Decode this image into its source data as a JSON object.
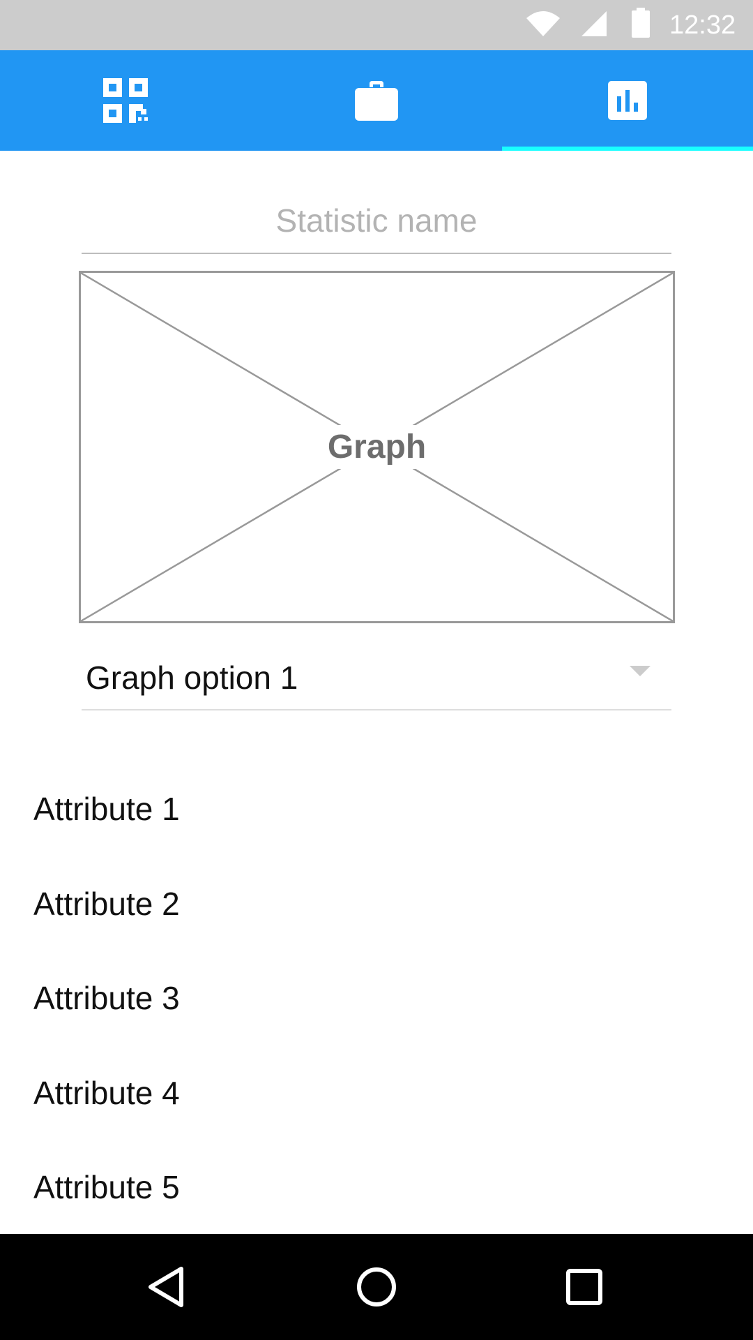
{
  "status_bar": {
    "time": "12:32",
    "icons": [
      "wifi-icon",
      "signal-icon",
      "battery-icon"
    ]
  },
  "tabs": [
    {
      "icon": "qr-code-icon",
      "active": false
    },
    {
      "icon": "briefcase-icon",
      "active": false
    },
    {
      "icon": "bar-chart-icon",
      "active": true
    }
  ],
  "colors": {
    "primary": "#2196f3",
    "tab_indicator": "#18ffff",
    "status_bar": "#cccccc",
    "nav_bar": "#000000"
  },
  "statistic": {
    "placeholder": "Statistic name",
    "value": ""
  },
  "graph": {
    "label": "Graph"
  },
  "graph_option": {
    "selected": "Graph option 1"
  },
  "attributes": [
    {
      "label": "Attribute 1"
    },
    {
      "label": "Attribute 2"
    },
    {
      "label": "Attribute 3"
    },
    {
      "label": "Attribute 4"
    },
    {
      "label": "Attribute 5"
    }
  ],
  "nav_bar": {
    "buttons": [
      "back-icon",
      "home-icon",
      "recents-icon"
    ]
  }
}
